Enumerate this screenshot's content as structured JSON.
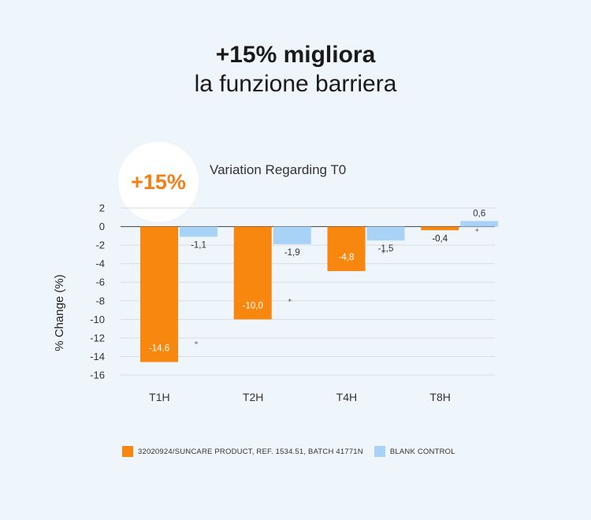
{
  "headline": {
    "line1": "+15% migliora",
    "line2": "la funzione barriera"
  },
  "badge": {
    "text": "+15%",
    "color": "#f57f17"
  },
  "chart_data": {
    "type": "bar",
    "title": "Variation Regarding T0",
    "ylabel": "% Change (%)",
    "xlabel": "",
    "categories": [
      "T1H",
      "T2H",
      "T4H",
      "T8H"
    ],
    "ylim": [
      -16,
      2
    ],
    "yticks": [
      2,
      0,
      -2,
      -4,
      -6,
      -8,
      -10,
      -12,
      -14,
      -16
    ],
    "grid": true,
    "series": [
      {
        "name": "32020924/SUNCARE PRODUCT, REF. 1534.51, BATCH 41771N",
        "color": "#f7870f",
        "values": [
          -14.6,
          -10.0,
          -4.8,
          -0.4
        ],
        "labels": [
          "-14,6",
          "-10,0",
          "-4,8",
          "-0,4"
        ]
      },
      {
        "name": "BLANK CONTROL",
        "color": "#a8d3f7",
        "values": [
          -1.1,
          -1.9,
          -1.5,
          0.6
        ],
        "labels": [
          "-1,1",
          "-1,9",
          "-1,5",
          "0,6"
        ]
      }
    ],
    "significance_marker": "*",
    "legend_position": "bottom"
  }
}
